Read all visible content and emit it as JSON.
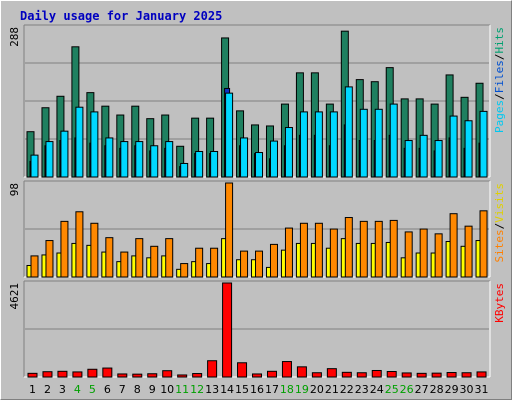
{
  "chart_data": {
    "type": "bar",
    "title": "Daily usage for January 2025",
    "x": {
      "categories": [
        "1",
        "2",
        "3",
        "4",
        "5",
        "6",
        "7",
        "8",
        "9",
        "10",
        "11",
        "12",
        "13",
        "14",
        "15",
        "16",
        "17",
        "18",
        "19",
        "20",
        "21",
        "22",
        "23",
        "24",
        "25",
        "26",
        "27",
        "28",
        "29",
        "30",
        "31"
      ],
      "weekend_days": [
        "4",
        "5",
        "11",
        "12",
        "18",
        "19",
        "25",
        "26"
      ]
    },
    "panels": [
      {
        "id": "top",
        "ymax": 288,
        "ymax_label": "288",
        "labels": [
          {
            "text": "Pages",
            "color": "#00c8f0"
          },
          {
            "text": "/",
            "color": "#000000"
          },
          {
            "text": "Files",
            "color": "#0050d0"
          },
          {
            "text": "/",
            "color": "#000000"
          },
          {
            "text": "Hits",
            "color": "#00a070"
          }
        ],
        "series": [
          {
            "name": "Hits",
            "color": "#1f8060",
            "values": [
              87,
              133,
              155,
              250,
              162,
              136,
              119,
              136,
              112,
              119,
              59,
              113,
              113,
              267,
              127,
              100,
              98,
              140,
              200,
              200,
              140,
              280,
              187,
              183,
              210,
              150,
              150,
              140,
              196,
              153,
              180
            ]
          },
          {
            "name": "Files",
            "color": "#1030c0",
            "values": [
              30,
              60,
              70,
              75,
              65,
              60,
              55,
              60,
              50,
              55,
              20,
              45,
              45,
              170,
              60,
              45,
              35,
              60,
              80,
              80,
              60,
              100,
              70,
              70,
              80,
              55,
              55,
              50,
              75,
              55,
              65
            ]
          },
          {
            "name": "Pages",
            "color": "#00d8ff",
            "values": [
              42,
              68,
              88,
              134,
              125,
              75,
              68,
              68,
              60,
              68,
              26,
              49,
              49,
              161,
              75,
              47,
              69,
              95,
              125,
              125,
              125,
              173,
              130,
              130,
              140,
              70,
              80,
              70,
              117,
              108,
              126
            ]
          }
        ]
      },
      {
        "id": "mid",
        "ymax": 98,
        "ymax_label": "98",
        "labels": [
          {
            "text": "Sites",
            "color": "#ff8000"
          },
          {
            "text": "/",
            "color": "#000000"
          },
          {
            "text": "Visits",
            "color": "#e0d000"
          }
        ],
        "series": [
          {
            "name": "Visits",
            "color": "#ffff00",
            "values": [
              12,
              23,
              25,
              35,
              33,
              26,
              16,
              22,
              20,
              22,
              8,
              16,
              14,
              40,
              18,
              18,
              10,
              28,
              35,
              35,
              30,
              40,
              35,
              35,
              36,
              20,
              25,
              25,
              37,
              32,
              38
            ]
          },
          {
            "name": "Sites",
            "color": "#ff8800",
            "values": [
              22,
              38,
              58,
              68,
              56,
              41,
              26,
              40,
              32,
              40,
              14,
              30,
              30,
              98,
              27,
              27,
              34,
              51,
              56,
              56,
              50,
              62,
              58,
              58,
              59,
              47,
              50,
              45,
              66,
              53,
              69
            ]
          }
        ]
      },
      {
        "id": "bot",
        "ymax": 4621,
        "ymax_label": "4621",
        "labels": [
          {
            "text": "KBytes",
            "color": "#ff0000"
          }
        ],
        "series": [
          {
            "name": "KBytes",
            "color": "#ff0000",
            "values": [
              180,
              260,
              280,
              250,
              380,
              440,
              150,
              140,
              160,
              310,
              100,
              170,
              800,
              4621,
              700,
              150,
              280,
              760,
              500,
              210,
              410,
              230,
              210,
              320,
              270,
              200,
              180,
              190,
              220,
              210,
              250
            ]
          }
        ]
      }
    ]
  }
}
